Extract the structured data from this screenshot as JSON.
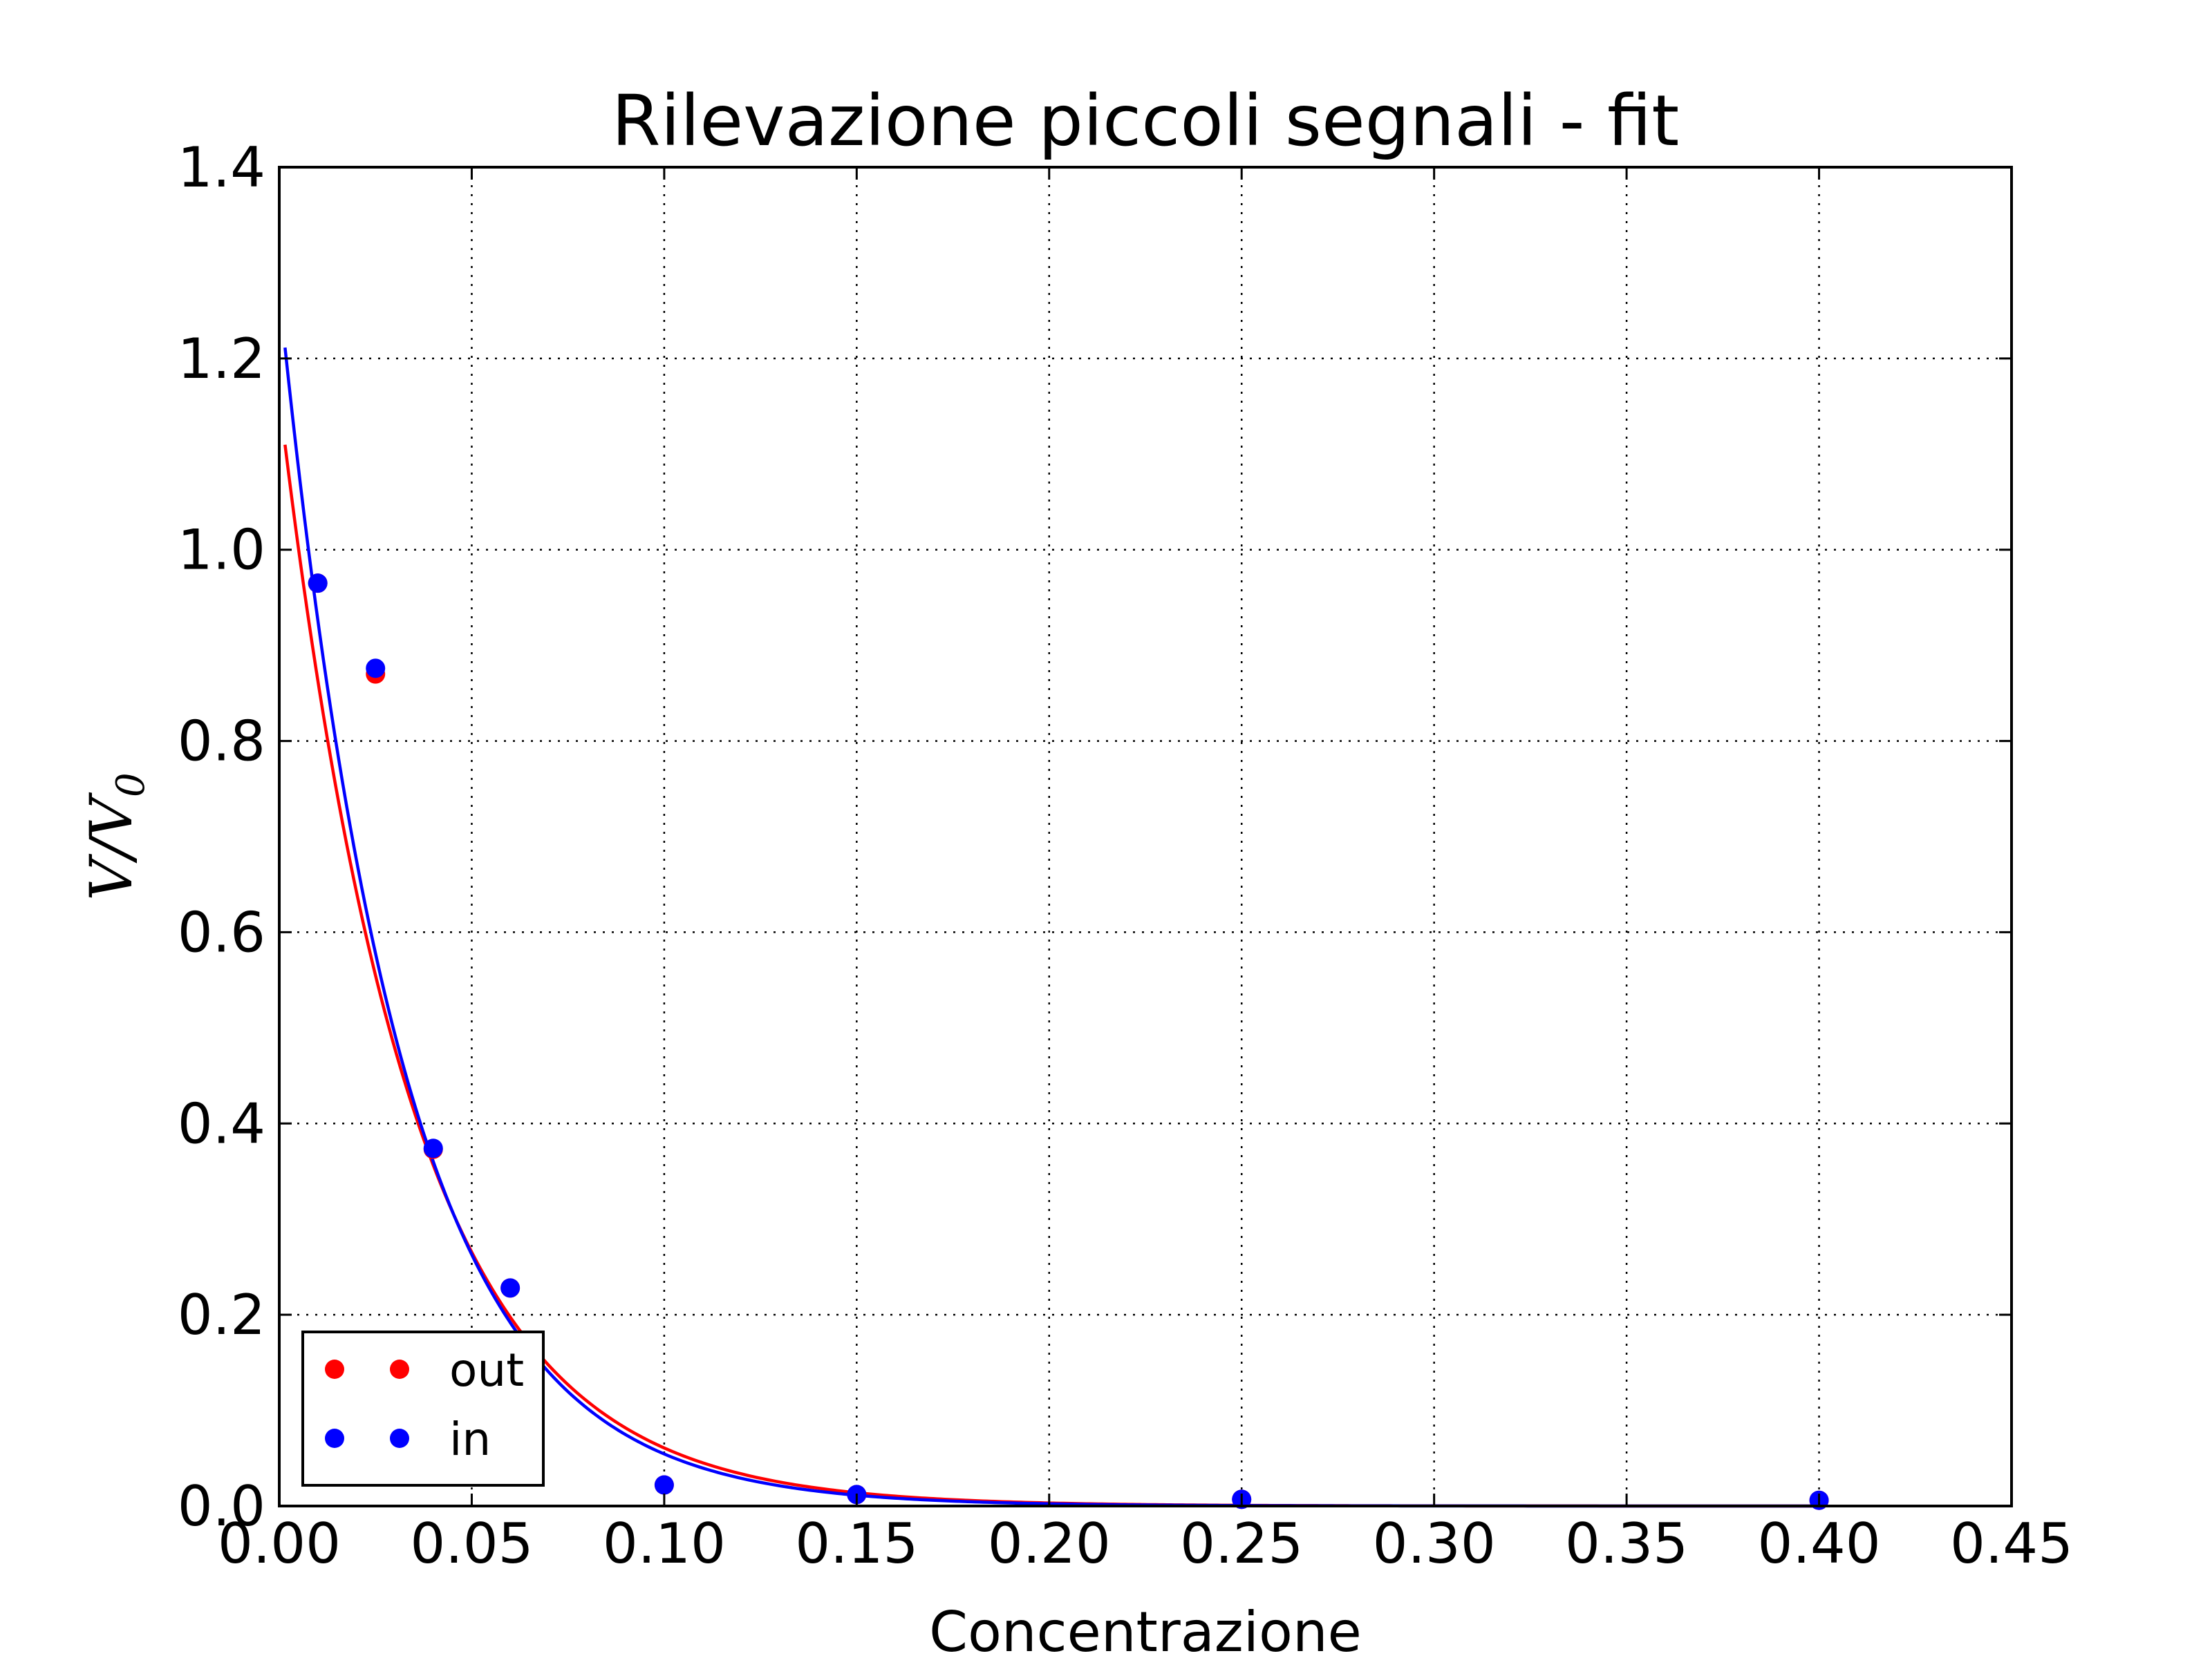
{
  "chart_data": {
    "type": "scatter",
    "title": "Rilevazione piccoli segnali - fit",
    "xlabel": "Concentrazione",
    "ylabel": "V/V",
    "ylabel_subscript": "0",
    "xlim": [
      0.0,
      0.45
    ],
    "ylim": [
      0.0,
      1.4
    ],
    "xticks": [
      "0.00",
      "0.05",
      "0.10",
      "0.15",
      "0.20",
      "0.25",
      "0.30",
      "0.35",
      "0.40",
      "0.45"
    ],
    "yticks": [
      "0.0",
      "0.2",
      "0.4",
      "0.6",
      "0.8",
      "1.0",
      "1.2",
      "1.4"
    ],
    "grid": true,
    "legend_position": "lower-left",
    "series": [
      {
        "name": "out",
        "color": "#ff0000",
        "points": [
          {
            "x": 0.01,
            "y": 0.965
          },
          {
            "x": 0.025,
            "y": 0.87
          },
          {
            "x": 0.04,
            "y": 0.373
          },
          {
            "x": 0.06,
            "y": 0.228
          },
          {
            "x": 0.1,
            "y": 0.022
          },
          {
            "x": 0.15,
            "y": 0.012
          },
          {
            "x": 0.25,
            "y": 0.007
          },
          {
            "x": 0.4,
            "y": 0.006
          }
        ],
        "fit": {
          "x_start": 0.0015,
          "x_end": 0.4,
          "a": 1.16,
          "k": 29.5
        }
      },
      {
        "name": "in",
        "color": "#0000ff",
        "points": [
          {
            "x": 0.01,
            "y": 0.965
          },
          {
            "x": 0.025,
            "y": 0.876
          },
          {
            "x": 0.04,
            "y": 0.374
          },
          {
            "x": 0.06,
            "y": 0.228
          },
          {
            "x": 0.1,
            "y": 0.022
          },
          {
            "x": 0.15,
            "y": 0.012
          },
          {
            "x": 0.25,
            "y": 0.007
          },
          {
            "x": 0.4,
            "y": 0.006
          }
        ],
        "fit": {
          "x_start": 0.0015,
          "x_end": 0.4,
          "a": 1.27,
          "k": 31.5
        }
      }
    ]
  }
}
